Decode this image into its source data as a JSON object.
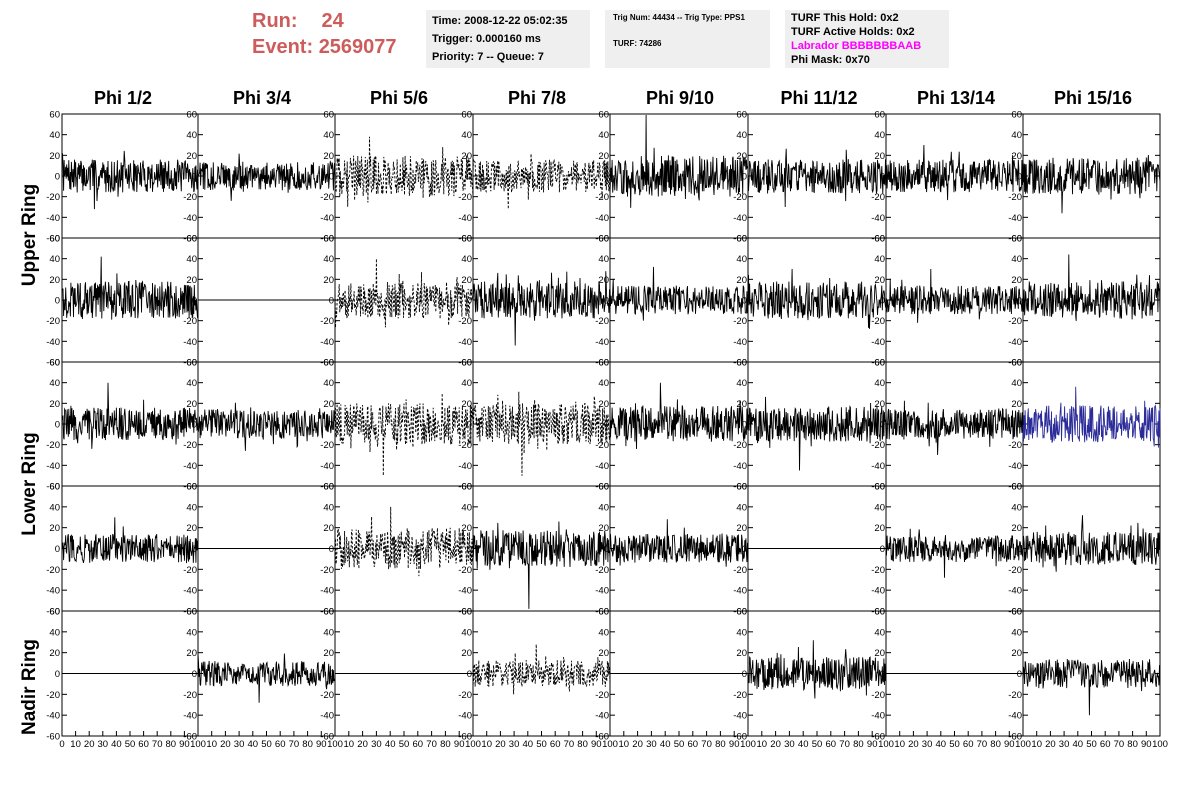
{
  "header": {
    "run_label": "Run:",
    "run_value": "24",
    "event_label": "Event:",
    "event_value": "2569077",
    "run_color": "#cd5c5c"
  },
  "time_box": {
    "time": "Time: 2008-12-22 05:02:35",
    "trigger": "Trigger: 0.000160 ms",
    "priority": "Priority: 7 -- Queue: 7"
  },
  "trig_box": {
    "trig": "Trig Num: 44434 -- Trig Type: PPS1",
    "turf": "TURF: 74286"
  },
  "turf_box": {
    "this_hold": "TURF This Hold: 0x2",
    "active_holds": "TURF Active Holds: 0x2",
    "labrador": "Labrador BBBBBBBAAB",
    "labrador_color": "#ff00ff",
    "phi_mask": "Phi Mask: 0x70"
  },
  "columns": [
    "Phi 1/2",
    "Phi 3/4",
    "Phi 5/6",
    "Phi 7/8",
    "Phi 9/10",
    "Phi 11/12",
    "Phi 13/14",
    "Phi 15/16"
  ],
  "row_groups": [
    "Upper Ring",
    "Lower Ring",
    "Nadir Ring"
  ],
  "chart_data": {
    "type": "line",
    "grid": false,
    "ylim": [
      -60,
      60
    ],
    "xlim": [
      0,
      100
    ],
    "yticks": [
      -60,
      -40,
      -20,
      0,
      20,
      40,
      60
    ],
    "xtick_labels": [
      "0",
      "10",
      "20",
      "30",
      "40",
      "50",
      "60",
      "70",
      "80",
      "90",
      "100"
    ],
    "line_color": "#000000",
    "highlight_color": "#2b2b9a",
    "panels": [
      {
        "row": 0,
        "col": 0,
        "style": "solid",
        "amplitude": 16,
        "peak": 32
      },
      {
        "row": 0,
        "col": 1,
        "style": "solid",
        "amplitude": 14,
        "peak": 24
      },
      {
        "row": 0,
        "col": 2,
        "style": "dashed",
        "amplitude": 20,
        "peak": 38
      },
      {
        "row": 0,
        "col": 3,
        "style": "dashed",
        "amplitude": 16,
        "peak": 32
      },
      {
        "row": 0,
        "col": 4,
        "style": "solid",
        "amplitude": 20,
        "peak": 60
      },
      {
        "row": 0,
        "col": 5,
        "style": "solid",
        "amplitude": 17,
        "peak": 30
      },
      {
        "row": 0,
        "col": 6,
        "style": "solid",
        "amplitude": 16,
        "peak": 30
      },
      {
        "row": 0,
        "col": 7,
        "style": "solid",
        "amplitude": 18,
        "peak": 36
      },
      {
        "row": 1,
        "col": 0,
        "style": "solid",
        "amplitude": 18,
        "peak": 42
      },
      {
        "row": 1,
        "col": 1,
        "style": "flat",
        "amplitude": 0,
        "peak": 0
      },
      {
        "row": 1,
        "col": 2,
        "style": "dashed",
        "amplitude": 18,
        "peak": 40
      },
      {
        "row": 1,
        "col": 3,
        "style": "solid",
        "amplitude": 18,
        "peak": 44
      },
      {
        "row": 1,
        "col": 4,
        "style": "solid",
        "amplitude": 14,
        "peak": 32
      },
      {
        "row": 1,
        "col": 5,
        "style": "solid",
        "amplitude": 18,
        "peak": 30
      },
      {
        "row": 1,
        "col": 6,
        "style": "solid",
        "amplitude": 14,
        "peak": 30
      },
      {
        "row": 1,
        "col": 7,
        "style": "solid",
        "amplitude": 18,
        "peak": 44
      },
      {
        "row": 2,
        "col": 0,
        "style": "solid",
        "amplitude": 16,
        "peak": 40
      },
      {
        "row": 2,
        "col": 1,
        "style": "solid",
        "amplitude": 14,
        "peak": 26
      },
      {
        "row": 2,
        "col": 2,
        "style": "dashed",
        "amplitude": 20,
        "peak": 50
      },
      {
        "row": 2,
        "col": 3,
        "style": "dashed",
        "amplitude": 20,
        "peak": 50
      },
      {
        "row": 2,
        "col": 4,
        "style": "solid",
        "amplitude": 18,
        "peak": 40
      },
      {
        "row": 2,
        "col": 5,
        "style": "solid",
        "amplitude": 17,
        "peak": 45
      },
      {
        "row": 2,
        "col": 6,
        "style": "solid",
        "amplitude": 15,
        "peak": 30
      },
      {
        "row": 2,
        "col": 7,
        "style": "highlight",
        "amplitude": 18,
        "peak": 36
      },
      {
        "row": 3,
        "col": 0,
        "style": "solid",
        "amplitude": 14,
        "peak": 30
      },
      {
        "row": 3,
        "col": 1,
        "style": "flat",
        "amplitude": 0,
        "peak": 0
      },
      {
        "row": 3,
        "col": 2,
        "style": "dashed",
        "amplitude": 20,
        "peak": 40
      },
      {
        "row": 3,
        "col": 3,
        "style": "solid",
        "amplitude": 18,
        "peak": 58
      },
      {
        "row": 3,
        "col": 4,
        "style": "solid",
        "amplitude": 14,
        "peak": 28
      },
      {
        "row": 3,
        "col": 5,
        "style": "flat",
        "amplitude": 0,
        "peak": 0
      },
      {
        "row": 3,
        "col": 6,
        "style": "solid",
        "amplitude": 13,
        "peak": 28
      },
      {
        "row": 3,
        "col": 7,
        "style": "solid",
        "amplitude": 16,
        "peak": 32
      },
      {
        "row": 4,
        "col": 0,
        "style": "flat",
        "amplitude": 0,
        "peak": 0
      },
      {
        "row": 4,
        "col": 1,
        "style": "solid",
        "amplitude": 12,
        "peak": 28
      },
      {
        "row": 4,
        "col": 2,
        "style": "flat",
        "amplitude": 0,
        "peak": 0
      },
      {
        "row": 4,
        "col": 3,
        "style": "dashed",
        "amplitude": 13,
        "peak": 28
      },
      {
        "row": 4,
        "col": 4,
        "style": "flat",
        "amplitude": 0,
        "peak": 0
      },
      {
        "row": 4,
        "col": 5,
        "style": "solid",
        "amplitude": 16,
        "peak": 32
      },
      {
        "row": 4,
        "col": 6,
        "style": "flat",
        "amplitude": 0,
        "peak": 0
      },
      {
        "row": 4,
        "col": 7,
        "style": "solid",
        "amplitude": 14,
        "peak": 40
      }
    ]
  }
}
